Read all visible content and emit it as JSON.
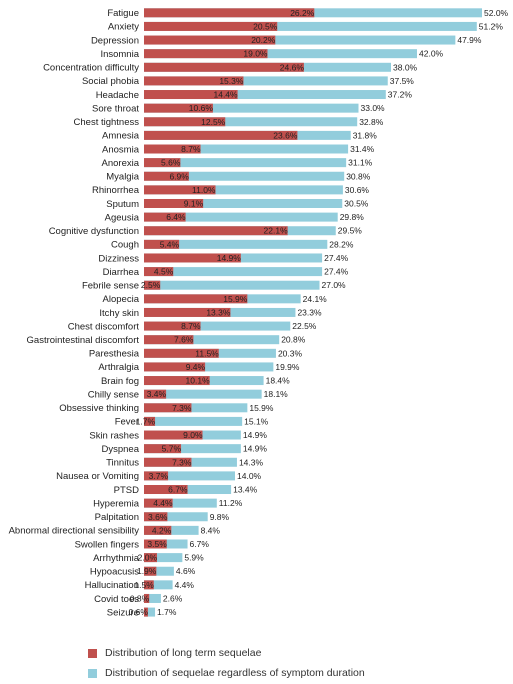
{
  "chart_data": {
    "type": "bar",
    "orientation": "horizontal",
    "categories": [
      "Fatigue",
      "Anxiety",
      "Depression",
      "Insomnia",
      "Concentration difficulty",
      "Social phobia",
      "Headache",
      "Sore throat",
      "Chest tightness",
      "Amnesia",
      "Anosmia",
      "Anorexia",
      "Myalgia",
      "Rhinorrhea",
      "Sputum",
      "Ageusia",
      "Cognitive dysfunction",
      "Cough",
      "Dizziness",
      "Diarrhea",
      "Febrile sense",
      "Alopecia",
      "Itchy skin",
      "Chest discomfort",
      "Gastrointestinal discomfort",
      "Paresthesia",
      "Arthralgia",
      "Brain fog",
      "Chilly sense",
      "Obsessive thinking",
      "Fever",
      "Skin rashes",
      "Dyspnea",
      "Tinnitus",
      "Nausea or Vomiting",
      "PTSD",
      "Hyperemia",
      "Palpitation",
      "Abnormal directional sensibility",
      "Swollen fingers",
      "Arrhythmia",
      "Hypoacusis",
      "Hallucination",
      "Covid toes",
      "Seizure"
    ],
    "series": [
      {
        "name": "Distribution of long term sequelae",
        "color": "#c0504d",
        "values": [
          26.2,
          20.5,
          20.2,
          19.0,
          24.6,
          15.3,
          14.4,
          10.6,
          12.5,
          23.6,
          8.7,
          5.6,
          6.9,
          11.0,
          9.1,
          6.4,
          22.1,
          5.4,
          14.9,
          4.5,
          2.5,
          15.9,
          13.3,
          8.7,
          7.6,
          11.5,
          9.4,
          10.1,
          3.4,
          7.3,
          1.7,
          9.0,
          5.7,
          7.3,
          3.7,
          6.7,
          4.4,
          3.6,
          4.2,
          3.5,
          2.0,
          1.9,
          1.5,
          0.8,
          0.6
        ],
        "labels": [
          "26.2%",
          "20.5%",
          "20.2%",
          "19.0%",
          "24.6%",
          "15.3%",
          "14.4%",
          "10.6%",
          "12.5%",
          "23.6%",
          "8.7%",
          "5.6%",
          "6.9%",
          "11.0%",
          "9.1%",
          "6.4%",
          "22.1%",
          "5.4%",
          "14.9%",
          "4.5%",
          "2.5%",
          "15.9%",
          "13.3%",
          "8.7%",
          "7.6%",
          "11.5%",
          "9.4%",
          "10.1%",
          "3.4%",
          "7.3%",
          "1.7%",
          "9.0%",
          "5.7%",
          "7.3%",
          "3.7%",
          "6.7%",
          "4.4%",
          "3.6%",
          "4.2%",
          "3.5%",
          "2.0%",
          "1.9%",
          "1.5%",
          "0.8%",
          "0.6%"
        ]
      },
      {
        "name": "Distribution of sequelae regardless of symptom duration",
        "color": "#92cddc",
        "values": [
          52.0,
          51.2,
          47.9,
          42.0,
          38.0,
          37.5,
          37.2,
          33.0,
          32.8,
          31.8,
          31.4,
          31.1,
          30.8,
          30.6,
          30.5,
          29.8,
          29.5,
          28.2,
          27.4,
          27.4,
          27.0,
          24.1,
          23.3,
          22.5,
          20.8,
          20.3,
          19.9,
          18.4,
          18.1,
          15.9,
          15.1,
          14.9,
          14.9,
          14.3,
          14.0,
          13.4,
          11.2,
          9.8,
          8.4,
          6.7,
          5.9,
          4.6,
          4.4,
          2.6,
          1.7
        ],
        "labels": [
          "52.0%",
          "51.2%",
          "47.9%",
          "42.0%",
          "38.0%",
          "37.5%",
          "37.2%",
          "33.0%",
          "32.8%",
          "31.8%",
          "31.4%",
          "31.1%",
          "30.8%",
          "30.6%",
          "30.5%",
          "29.8%",
          "29.5%",
          "28.2%",
          "27.4%",
          "27.4%",
          "27.0%",
          "24.1%",
          "23.3%",
          "22.5%",
          "20.8%",
          "20.3%",
          "19.9%",
          "18.4%",
          "18.1%",
          "15.9%",
          "15.1%",
          "14.9%",
          "14.9%",
          "14.3%",
          "14.0%",
          "13.4%",
          "11.2%",
          "9.8%",
          "8.4%",
          "6.7%",
          "5.9%",
          "4.6%",
          "4.4%",
          "2.6%",
          "1.7%"
        ]
      }
    ],
    "xlim": [
      0,
      52
    ],
    "grid": false,
    "legend_position": "bottom"
  }
}
